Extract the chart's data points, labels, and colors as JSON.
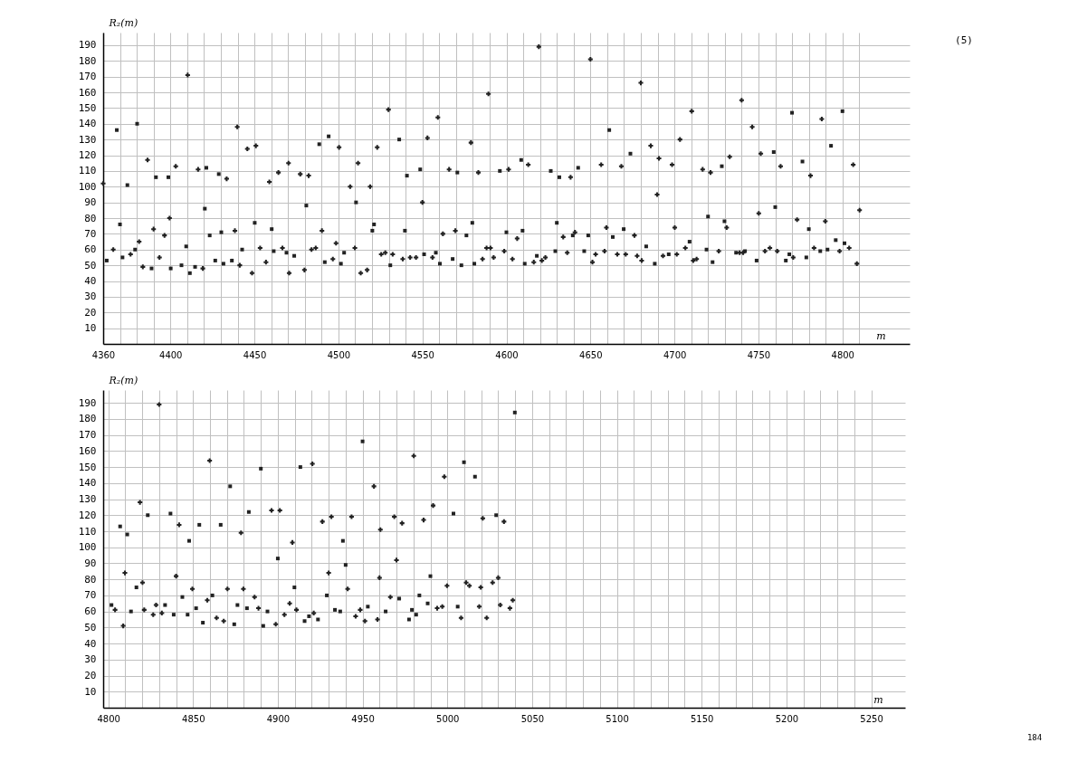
{
  "chart_data": [
    {
      "type": "scatter",
      "xlabel": "m",
      "ylabel": "R₂(m)",
      "annotations": [
        "(5)"
      ],
      "grid": true,
      "xlim": [
        4360,
        4840
      ],
      "ylim": [
        0,
        198
      ],
      "xticks": [
        4360,
        {
          "value": 4370,
          "label": null
        },
        {
          "value": 4380,
          "label": null
        },
        {
          "value": 4390,
          "label": null
        },
        4400,
        {
          "value": 4410,
          "label": null
        },
        {
          "value": 4420,
          "label": null
        },
        {
          "value": 4430,
          "label": null
        },
        {
          "value": 4440,
          "label": null
        },
        4450,
        {
          "value": 4460,
          "label": null
        },
        {
          "value": 4470,
          "label": null
        },
        {
          "value": 4480,
          "label": null
        },
        {
          "value": 4490,
          "label": null
        },
        4500,
        {
          "value": 4510,
          "label": null
        },
        {
          "value": 4520,
          "label": null
        },
        {
          "value": 4530,
          "label": null
        },
        {
          "value": 4540,
          "label": null
        },
        4550,
        {
          "value": 4560,
          "label": null
        },
        {
          "value": 4570,
          "label": null
        },
        {
          "value": 4580,
          "label": null
        },
        {
          "value": 4590,
          "label": null
        },
        4600,
        {
          "value": 4610,
          "label": null
        },
        {
          "value": 4620,
          "label": null
        },
        {
          "value": 4630,
          "label": null
        },
        {
          "value": 4640,
          "label": null
        },
        4650,
        {
          "value": 4660,
          "label": null
        },
        {
          "value": 4670,
          "label": null
        },
        {
          "value": 4680,
          "label": null
        },
        {
          "value": 4690,
          "label": null
        },
        4700,
        {
          "value": 4710,
          "label": null
        },
        {
          "value": 4720,
          "label": null
        },
        {
          "value": 4730,
          "label": null
        },
        {
          "value": 4740,
          "label": null
        },
        4750,
        {
          "value": 4760,
          "label": null
        },
        {
          "value": 4770,
          "label": null
        },
        {
          "value": 4780,
          "label": null
        },
        {
          "value": 4790,
          "label": null
        },
        4800,
        {
          "value": 4810,
          "label": null
        }
      ],
      "yticks": [
        10,
        20,
        30,
        40,
        50,
        60,
        70,
        80,
        90,
        100,
        110,
        120,
        130,
        140,
        150,
        160,
        170,
        180,
        190
      ],
      "series": [
        {
          "color": "#222222",
          "marker": "square",
          "x": [
            4362.1,
            4368.1,
            4370,
            4371.5,
            4374.4,
            4379,
            4380.2,
            4388.8,
            4391.4,
            4398.8,
            4400.2,
            4406.6,
            4409.4,
            4411.6,
            4414.7,
            4420.5,
            4421.4,
            4423.4,
            4426.7,
            4428.8,
            4430.3,
            4431.6,
            4436.6,
            4442.7,
            4450.2,
            4460.3,
            4461.5,
            4469.1,
            4473.7,
            4480.9,
            4488.6,
            4491.9,
            4494.2,
            4501.5,
            4503.4,
            4510.5,
            4520.2,
            4521.2,
            4530.9,
            4536.2,
            4539.6,
            4540.8,
            4548.7,
            4551,
            4558,
            4560.4,
            4568,
            4570.8,
            4573.2,
            4576.2,
            4579.7,
            4580.9,
            4596.1,
            4600,
            4608.8,
            4609.6,
            4610.9,
            4618.1,
            4626.4,
            4629.1,
            4630,
            4631.5,
            4639.5,
            4642.7,
            4646.3,
            4648.7,
            4661.2,
            4663.3,
            4669.8,
            4673.8,
            4683.2,
            4688.3,
            4696.6,
            4709,
            4719.1,
            4720,
            4722.7,
            4728.2,
            4729.8,
            4736.7,
            4742,
            4748.9,
            4759.1,
            4760,
            4766.3,
            4768.4,
            4770,
            4776.2,
            4778.5,
            4780,
            4786.8,
            4791.1,
            4793.2,
            4796,
            4800,
            4801.2
          ],
          "values": [
            53,
            136,
            76,
            55,
            101,
            60,
            140,
            48,
            106,
            106,
            48,
            50,
            62,
            45,
            49,
            86,
            112,
            69,
            53,
            108,
            71,
            51,
            53,
            60,
            77,
            73,
            59,
            58,
            56,
            88,
            127,
            52,
            132,
            51,
            58,
            90,
            72,
            76,
            50,
            130,
            72,
            107,
            111,
            57,
            58,
            51,
            54,
            109,
            50,
            69,
            77,
            51,
            110,
            71,
            117,
            72,
            51,
            56,
            110,
            59,
            77,
            106,
            69,
            112,
            59,
            69,
            136,
            68,
            73,
            121,
            62,
            51,
            57,
            65,
            60,
            81,
            52,
            113,
            78,
            58,
            59,
            53,
            122,
            87,
            53,
            57,
            147,
            116,
            55,
            73,
            59,
            60,
            126,
            66,
            148,
            64
          ]
        },
        {
          "color": "#222222",
          "marker": "cross",
          "x": [
            4360,
            4366,
            4376.3,
            4381.4,
            4383.6,
            4386.4,
            4390,
            4393.5,
            4396.5,
            4399.5,
            4403.2,
            4410.3,
            4416.5,
            4419.3,
            4433.5,
            4438.4,
            4439.8,
            4441.3,
            4445.8,
            4448.6,
            4450.9,
            4453.4,
            4456.9,
            4458.9,
            4464.3,
            4466.7,
            4470.3,
            4470.7,
            4477.3,
            4479.8,
            4482.3,
            4484,
            4486.5,
            4490.2,
            4496.7,
            4498.6,
            4500.4,
            4507,
            4509.8,
            4511.7,
            4513.3,
            4517.1,
            4518.9,
            4523.1,
            4525.5,
            4527.9,
            4529.8,
            4532.3,
            4538.3,
            4542.7,
            4546.2,
            4550,
            4553,
            4556,
            4559.2,
            4562.2,
            4565.9,
            4569.6,
            4578.9,
            4583.3,
            4585.8,
            4588.2,
            4589.3,
            4590.5,
            4592.4,
            4598.7,
            4601.3,
            4603.6,
            4606.4,
            4613,
            4616.3,
            4619.3,
            4621.1,
            4623.2,
            4633.8,
            4636.2,
            4638.2,
            4640.8,
            4650,
            4651.2,
            4653.1,
            4656.4,
            4658.4,
            4659.5,
            4666,
            4668.4,
            4671,
            4676.2,
            4677.8,
            4680,
            4680.5,
            4685.9,
            4689.7,
            4690.8,
            4693.2,
            4698.6,
            4700.2,
            4701.4,
            4703.3,
            4706.5,
            4710.3,
            4711.2,
            4713.2,
            4716.8,
            4721.5,
            4726.4,
            4731.1,
            4732.9,
            4738.8,
            4740,
            4740.9,
            4746.3,
            4750.2,
            4751.4,
            4753.9,
            4756.8,
            4761.2,
            4763.2,
            4770.7,
            4773,
            4781,
            4783.1,
            4787.7,
            4789.8,
            4798.3,
            4804,
            4806.4,
            4808.6,
            4810.2
          ],
          "values": [
            102,
            60,
            57,
            65,
            49,
            117,
            73,
            55,
            69,
            80,
            113,
            171,
            111,
            48,
            105,
            72,
            138,
            50,
            124,
            45,
            126,
            61,
            52,
            103,
            109,
            61,
            115,
            45,
            108,
            47,
            107,
            60,
            61,
            72,
            54,
            64,
            125,
            100,
            61,
            115,
            45,
            47,
            100,
            125,
            57,
            58,
            149,
            57,
            54,
            55,
            55,
            90,
            131,
            55,
            144,
            70,
            111,
            72,
            128,
            109,
            54,
            61,
            159,
            61,
            55,
            59,
            111,
            54,
            67,
            114,
            52,
            189,
            53,
            55,
            68,
            58,
            106,
            71,
            181,
            52,
            57,
            114,
            59,
            74,
            57,
            113,
            57,
            69,
            56,
            166,
            53,
            126,
            95,
            118,
            56,
            114,
            74,
            57,
            130,
            61,
            148,
            53,
            54,
            111,
            109,
            59,
            74,
            119,
            58,
            155,
            58,
            138,
            83,
            121,
            59,
            61,
            59,
            113,
            55,
            79,
            107,
            61,
            143,
            78,
            59,
            61,
            114,
            51,
            85
          ]
        }
      ]
    },
    {
      "type": "scatter",
      "xlabel": "m",
      "ylabel": "R₂(m)",
      "annotations": [
        "184"
      ],
      "grid": true,
      "xlim": [
        4797,
        5270
      ],
      "ylim": [
        0,
        198
      ],
      "xticks": [
        4800,
        {
          "value": 4810,
          "label": null
        },
        {
          "value": 4820,
          "label": null
        },
        {
          "value": 4830,
          "label": null
        },
        {
          "value": 4840,
          "label": null
        },
        4850,
        {
          "value": 4860,
          "label": null
        },
        {
          "value": 4870,
          "label": null
        },
        {
          "value": 4880,
          "label": null
        },
        {
          "value": 4890,
          "label": null
        },
        4900,
        {
          "value": 4910,
          "label": null
        },
        {
          "value": 4920,
          "label": null
        },
        {
          "value": 4930,
          "label": null
        },
        {
          "value": 4940,
          "label": null
        },
        4950,
        {
          "value": 4960,
          "label": null
        },
        {
          "value": 4970,
          "label": null
        },
        {
          "value": 4980,
          "label": null
        },
        {
          "value": 4990,
          "label": null
        },
        5000,
        {
          "value": 5010,
          "label": null
        },
        {
          "value": 5020,
          "label": null
        },
        {
          "value": 5030,
          "label": null
        },
        {
          "value": 5040,
          "label": null
        },
        5050,
        {
          "value": 5060,
          "label": null
        },
        {
          "value": 5070,
          "label": null
        },
        {
          "value": 5080,
          "label": null
        },
        {
          "value": 5090,
          "label": null
        },
        5100,
        {
          "value": 5110,
          "label": null
        },
        {
          "value": 5120,
          "label": null
        },
        {
          "value": 5130,
          "label": null
        },
        {
          "value": 5140,
          "label": null
        },
        5150,
        {
          "value": 5160,
          "label": null
        },
        {
          "value": 5170,
          "label": null
        },
        {
          "value": 5180,
          "label": null
        },
        {
          "value": 5190,
          "label": null
        },
        5200,
        {
          "value": 5210,
          "label": null
        },
        {
          "value": 5220,
          "label": null
        },
        {
          "value": 5230,
          "label": null
        },
        {
          "value": 5240,
          "label": null
        },
        5250
      ],
      "yticks": [
        10,
        20,
        30,
        40,
        50,
        60,
        70,
        80,
        90,
        100,
        110,
        120,
        130,
        140,
        150,
        160,
        170,
        180,
        190
      ],
      "series": [
        {
          "color": "#222222",
          "marker": "square",
          "x": [
            4801.9,
            4807,
            4811.2,
            4813.4,
            4816.6,
            4823.3,
            4833.5,
            4836.7,
            4838.6,
            4843.7,
            4846.8,
            4847.7,
            4851.8,
            4853.7,
            4855.8,
            4861.4,
            4866.3,
            4871.9,
            4874.3,
            4876.2,
            4881.8,
            4882.9,
            4890,
            4891.4,
            4893.9,
            4900,
            4909.8,
            4913.3,
            4915.8,
            4918.4,
            4923.7,
            4928.9,
            4933.7,
            4936.8,
            4938.4,
            4940,
            4950,
            4953.1,
            4963.6,
            4971.6,
            4977.4,
            4979.1,
            4981.6,
            4983.5,
            4988.4,
            4990,
            5003.6,
            5006.1,
            5009.8,
            5016.3,
            5028.8,
            5039.8
          ],
          "values": [
            64,
            113,
            108,
            60,
            75,
            120,
            64,
            121,
            58,
            69,
            58,
            104,
            62,
            114,
            53,
            70,
            114,
            138,
            52,
            64,
            62,
            122,
            149,
            51,
            60,
            93,
            75,
            150,
            54,
            57,
            55,
            70,
            61,
            60,
            104,
            89,
            166,
            63,
            60,
            68,
            55,
            61,
            58,
            70,
            65,
            82,
            121,
            63,
            153,
            144,
            120,
            184
          ]
        },
        {
          "color": "#222222",
          "marker": "cross",
          "x": [
            4804,
            4808.8,
            4809.8,
            4818.7,
            4820.2,
            4821.2,
            4826.5,
            4828.2,
            4830,
            4831.6,
            4840,
            4841.8,
            4849.6,
            4858.4,
            4859.8,
            4863.9,
            4868.1,
            4870.3,
            4878.3,
            4879.7,
            4886.3,
            4888.6,
            4896.3,
            4898.8,
            4901.2,
            4903.9,
            4907,
            4908.6,
            4911,
            4920.4,
            4921.2,
            4926.3,
            4930,
            4931.6,
            4941.2,
            4943.5,
            4945.9,
            4948.6,
            4951.4,
            4956.7,
            4958.8,
            4960,
            4960.5,
            4966.4,
            4968.7,
            4970,
            4973.3,
            4980.2,
            4986,
            4991.6,
            4994,
            4997,
            4998.2,
            4999.8,
            5008.1,
            5011.1,
            5013,
            5018.8,
            5019.7,
            5020.9,
            5023.2,
            5026.7,
            5030,
            5031.2,
            5033.4,
            5036.9,
            5038.6
          ],
          "values": [
            61,
            51,
            84,
            128,
            78,
            61,
            58,
            64,
            189,
            59,
            82,
            114,
            74,
            67,
            154,
            56,
            54,
            74,
            109,
            74,
            69,
            62,
            123,
            52,
            123,
            58,
            65,
            103,
            61,
            152,
            59,
            116,
            84,
            119,
            74,
            119,
            57,
            61,
            54,
            138,
            55,
            81,
            111,
            69,
            119,
            92,
            115,
            157,
            117,
            126,
            62,
            63,
            144,
            76,
            56,
            78,
            76,
            63,
            75,
            118,
            56,
            78,
            81,
            64,
            116,
            62,
            67
          ]
        }
      ]
    }
  ]
}
